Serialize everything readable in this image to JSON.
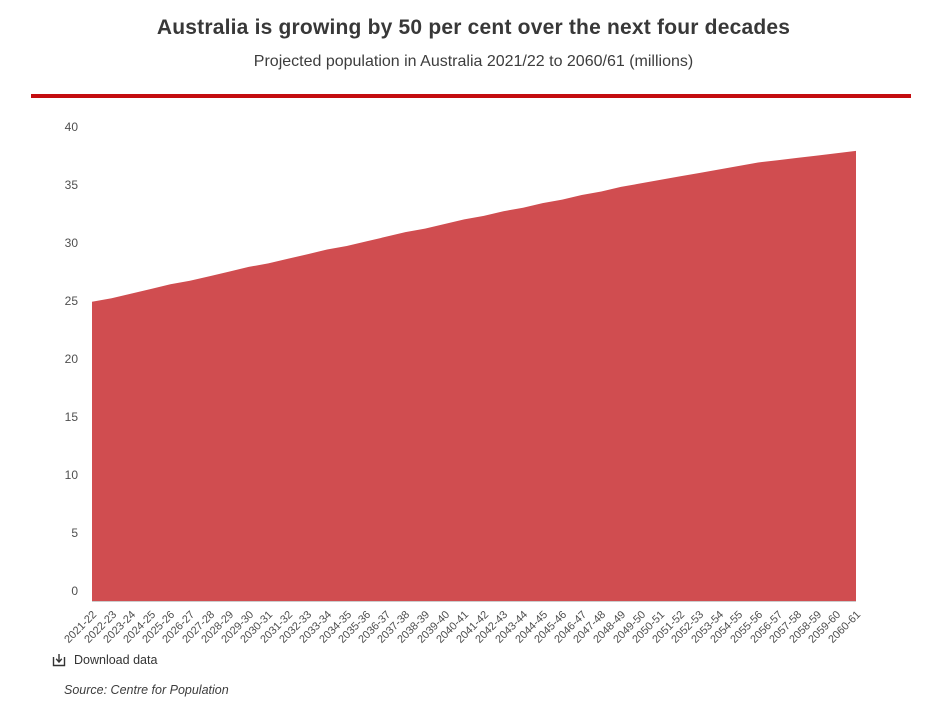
{
  "header": {
    "title": "Australia is growing by 50 per cent over the next four decades",
    "subtitle": "Projected population in Australia 2021/22 to 2060/61 (millions)"
  },
  "footer": {
    "download_label": "Download data",
    "source": "Source: Centre for Population"
  },
  "colors": {
    "area_fill": "#d04d50",
    "accent_rule": "#c40d10",
    "axis_text": "#4f4f4f",
    "baseline": "#cccccc"
  },
  "chart_data": {
    "type": "area",
    "title": "Australia is growing by 50 per cent over the next four decades",
    "subtitle": "Projected population in Australia 2021/22 to 2060/61 (millions)",
    "xlabel": "",
    "ylabel": "",
    "ylim": [
      0,
      40
    ],
    "yticks": [
      0,
      5,
      10,
      15,
      20,
      25,
      30,
      35,
      40
    ],
    "grid": false,
    "legend_position": "none",
    "categories": [
      "2021-22",
      "2022-23",
      "2023-24",
      "2024-25",
      "2025-26",
      "2026-27",
      "2027-28",
      "2028-29",
      "2029-30",
      "2030-31",
      "2031-32",
      "2032-33",
      "2033-34",
      "2034-35",
      "2035-36",
      "2036-37",
      "2037-38",
      "2038-39",
      "2039-40",
      "2040-41",
      "2041-42",
      "2042-43",
      "2043-44",
      "2044-45",
      "2045-46",
      "2046-47",
      "2047-48",
      "2048-49",
      "2049-50",
      "2050-51",
      "2051-52",
      "2052-53",
      "2053-54",
      "2054-55",
      "2055-56",
      "2056-57",
      "2057-58",
      "2058-59",
      "2059-60",
      "2060-61"
    ],
    "values": [
      25.8,
      26.1,
      26.5,
      26.9,
      27.3,
      27.6,
      28.0,
      28.4,
      28.8,
      29.1,
      29.5,
      29.9,
      30.3,
      30.6,
      31.0,
      31.4,
      31.8,
      32.1,
      32.5,
      32.9,
      33.2,
      33.6,
      33.9,
      34.3,
      34.6,
      35.0,
      35.3,
      35.7,
      36.0,
      36.3,
      36.6,
      36.9,
      37.2,
      37.5,
      37.8,
      38.0,
      38.2,
      38.4,
      38.6,
      38.8
    ],
    "source": "Source: Centre for Population"
  }
}
